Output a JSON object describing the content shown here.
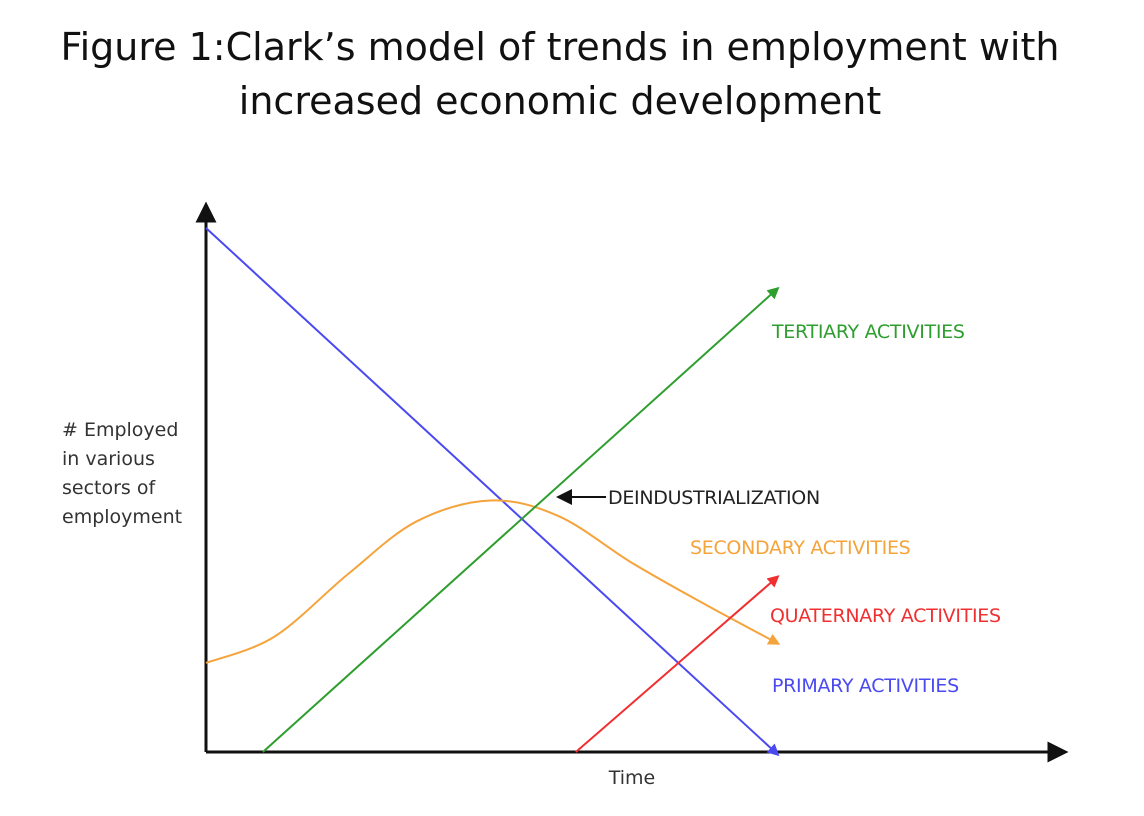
{
  "figure": {
    "title": "Figure 1:Clark’s model of trends in employment with\nincreased economic development"
  },
  "chart_data": {
    "type": "line",
    "title": "",
    "xlabel": "Time",
    "ylabel": [
      "# Employed",
      "in various",
      "sectors of",
      "employment"
    ],
    "xlim": [
      0,
      100
    ],
    "ylim": [
      0,
      100
    ],
    "grid": false,
    "legend": "none",
    "series": [
      {
        "name": "PRIMARY ACTIVITIES",
        "color": "#4a4af0",
        "x": [
          0,
          100
        ],
        "y": [
          100,
          0
        ]
      },
      {
        "name": "SECONDARY ACTIVITIES",
        "color": "#f5a33b",
        "x": [
          0,
          12,
          25,
          37,
          50,
          62,
          75,
          88,
          100
        ],
        "y": [
          17,
          22,
          34,
          44,
          48,
          45,
          36,
          28,
          21
        ]
      },
      {
        "name": "TERTIARY ACTIVITIES",
        "color": "#2e9e2e",
        "x": [
          10,
          100
        ],
        "y": [
          0,
          88
        ]
      },
      {
        "name": "QUATERNARY ACTIVITIES",
        "color": "#f03030",
        "x": [
          65,
          100
        ],
        "y": [
          0,
          33
        ]
      }
    ],
    "annotations": [
      {
        "text": "DEINDUSTRIALIZATION",
        "x": 52,
        "y": 48
      }
    ]
  }
}
